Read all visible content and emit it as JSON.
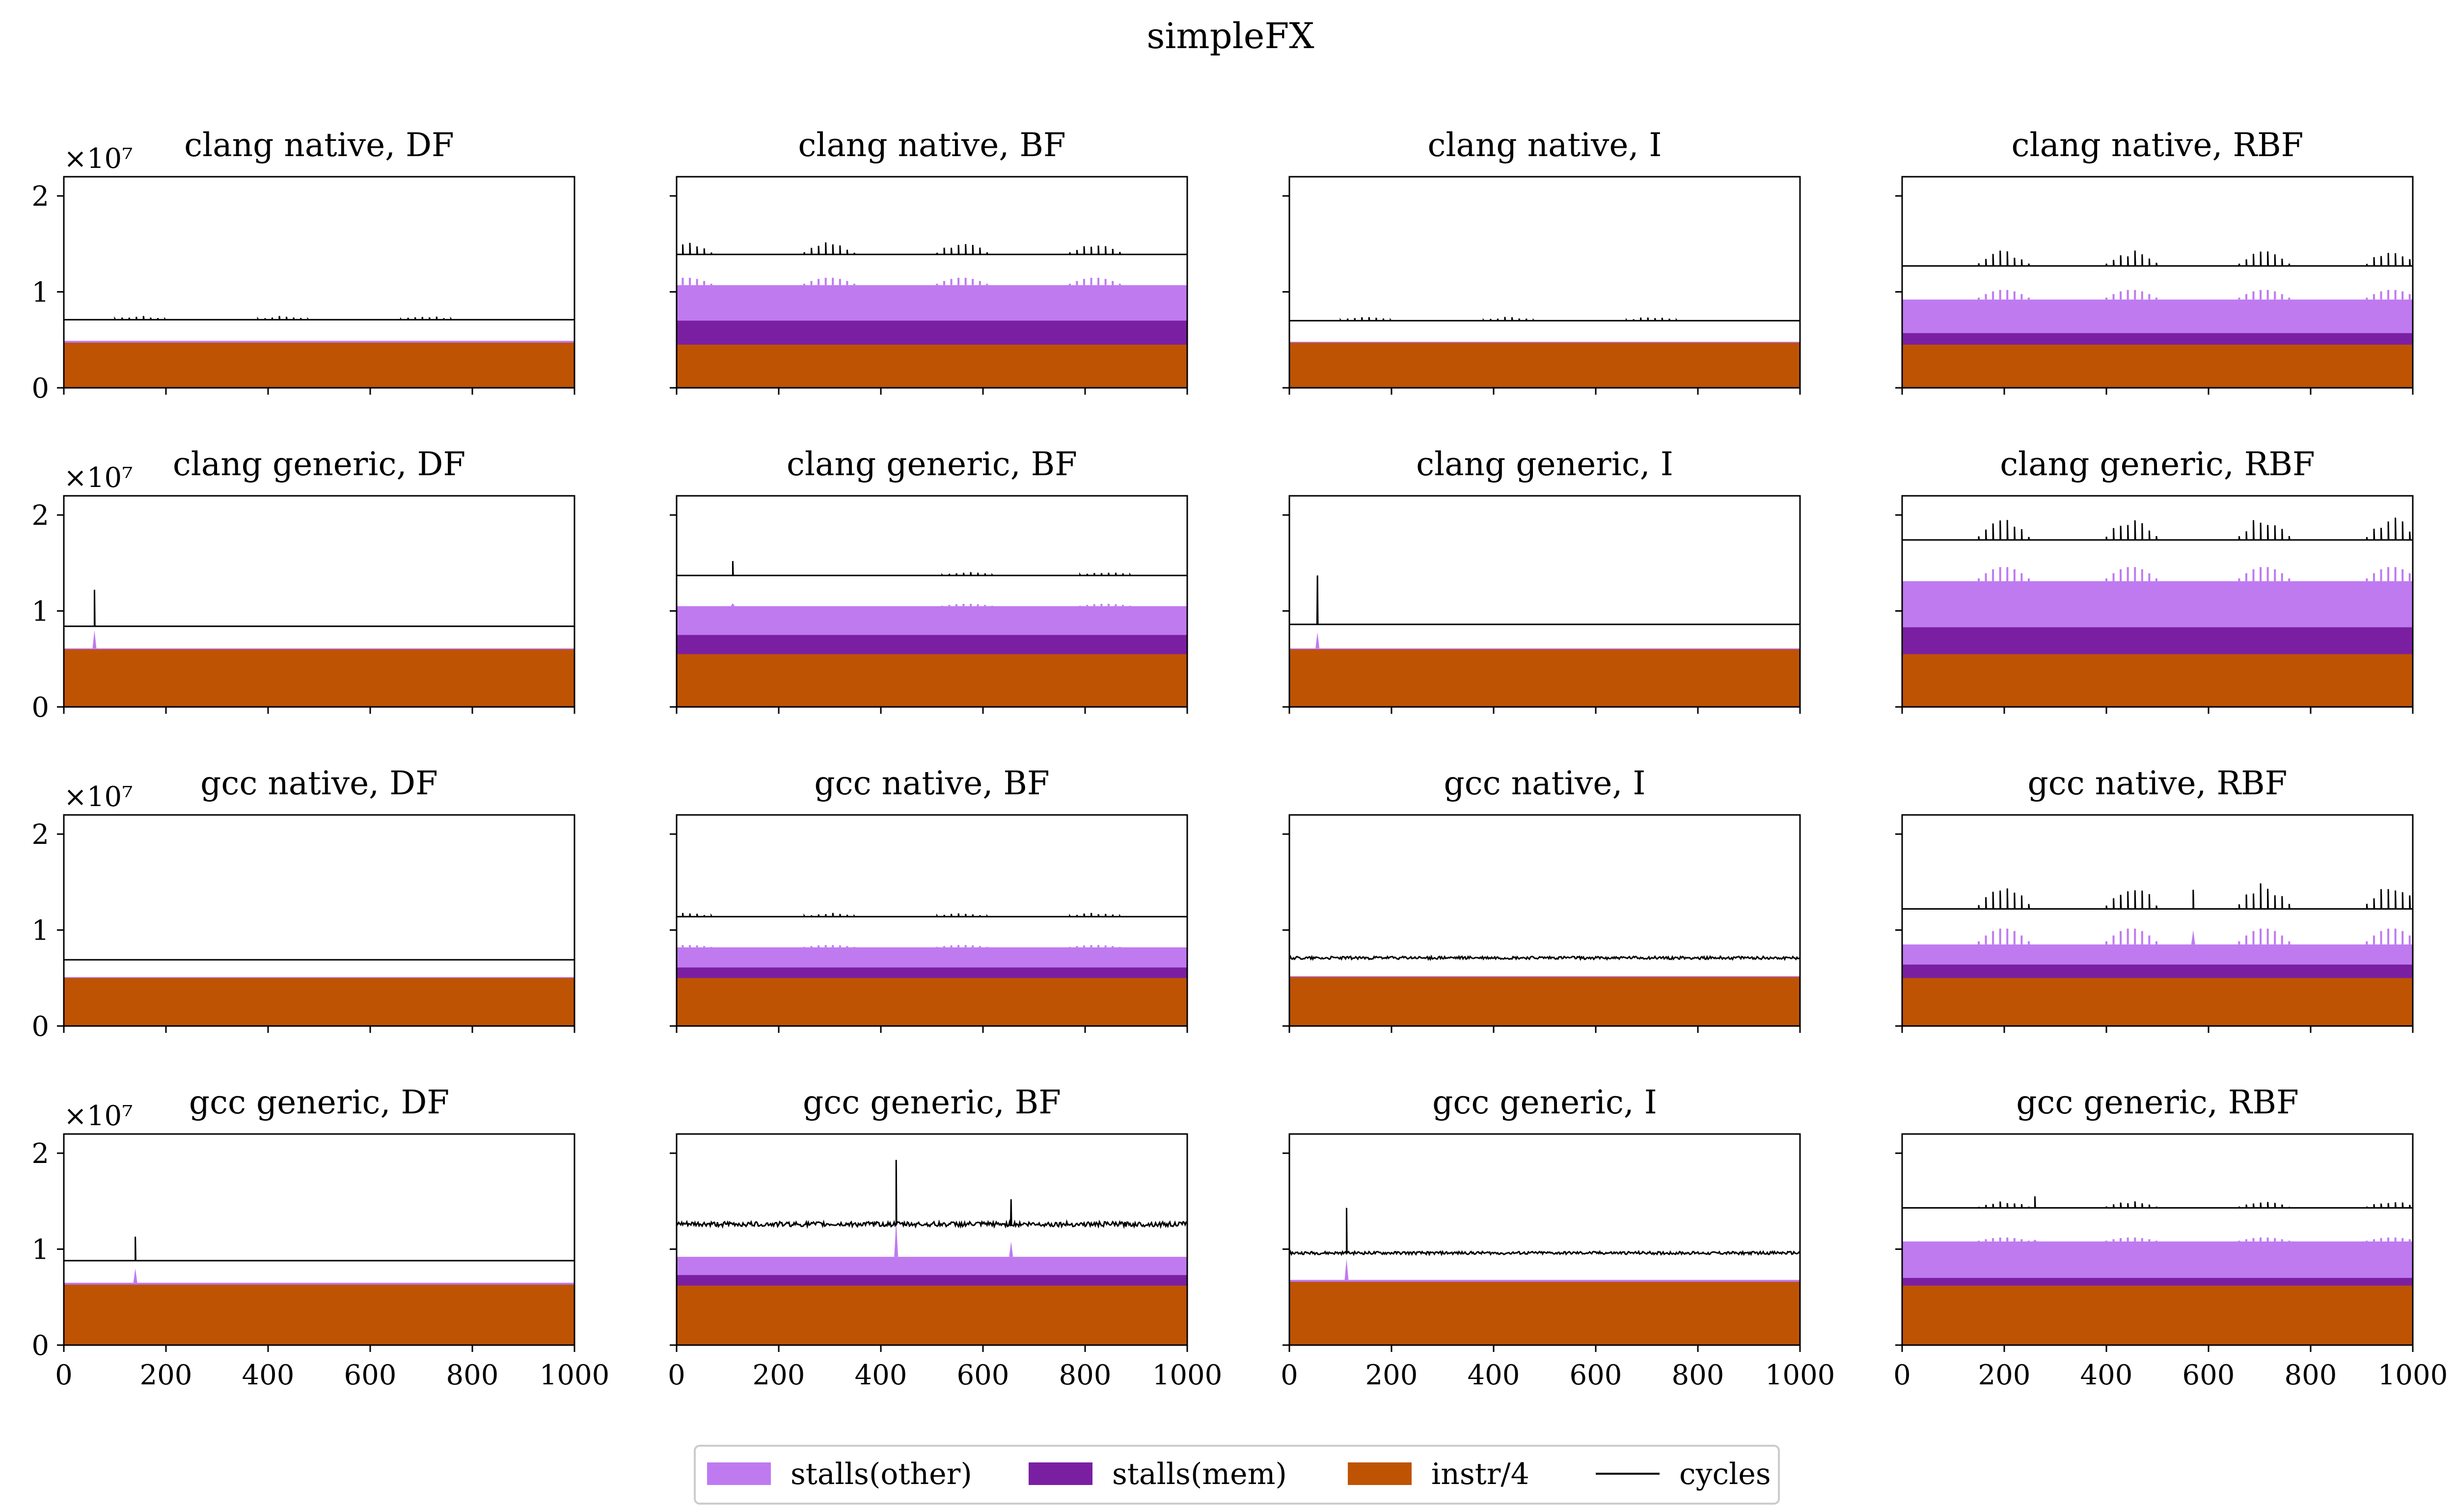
{
  "chart_data": {
    "type": "area",
    "title": "simpleFX",
    "grid": false,
    "legend_placement": "bottom-center",
    "y_scale_label": "×10⁷",
    "x_ticks": [
      0,
      200,
      400,
      600,
      800,
      1000
    ],
    "y_ticks": [
      0,
      1,
      2
    ],
    "xlim": [
      0,
      1000
    ],
    "ylim": [
      0,
      2.2
    ],
    "units_note": "y values in units of 1e7",
    "series": [
      {
        "name": "stalls(other)",
        "color": "#bf7af0",
        "kind": "area"
      },
      {
        "name": "stalls(mem)",
        "color": "#7b1fa2",
        "kind": "area"
      },
      {
        "name": "instr/4",
        "color": "#bf5304",
        "kind": "area"
      },
      {
        "name": "cycles",
        "color": "#000000",
        "kind": "line"
      }
    ],
    "panels": [
      {
        "title": "clang native, DF",
        "instr4": 0.47,
        "stalls_mem_top": 0.47,
        "stalls_other_top": 0.49,
        "cycles": 0.71,
        "bursts": [
          150,
          430,
          710
        ],
        "burst_amp": 0.04,
        "spikes": []
      },
      {
        "title": "clang native, BF",
        "instr4": 0.45,
        "stalls_mem_top": 0.7,
        "stalls_other_top": 1.07,
        "cycles": 1.39,
        "bursts": [
          20,
          300,
          560,
          820
        ],
        "burst_amp": 0.13,
        "spikes": []
      },
      {
        "title": "clang native, I",
        "instr4": 0.47,
        "stalls_mem_top": 0.47,
        "stalls_other_top": 0.48,
        "cycles": 0.7,
        "bursts": [
          150,
          430,
          710
        ],
        "burst_amp": 0.04,
        "spikes": []
      },
      {
        "title": "clang native, RBF",
        "instr4": 0.45,
        "stalls_mem_top": 0.57,
        "stalls_other_top": 0.92,
        "cycles": 1.27,
        "bursts": [
          200,
          450,
          710,
          960
        ],
        "burst_amp": 0.17,
        "spikes": []
      },
      {
        "title": "clang generic, DF",
        "instr4": 0.6,
        "stalls_mem_top": 0.6,
        "stalls_other_top": 0.61,
        "cycles": 0.84,
        "bursts": [],
        "burst_amp": 0,
        "spikes": [
          {
            "x": 60,
            "cycles": 1.22,
            "other": 0.8
          }
        ]
      },
      {
        "title": "clang generic, BF",
        "instr4": 0.55,
        "stalls_mem_top": 0.75,
        "stalls_other_top": 1.05,
        "cycles": 1.37,
        "bursts": [
          570,
          840
        ],
        "burst_amp": 0.04,
        "spikes": [
          {
            "x": 110,
            "cycles": 1.52,
            "other": 1.08
          }
        ]
      },
      {
        "title": "clang generic, I",
        "instr4": 0.6,
        "stalls_mem_top": 0.6,
        "stalls_other_top": 0.61,
        "cycles": 0.86,
        "bursts": [],
        "burst_amp": 0,
        "spikes": [
          {
            "x": 55,
            "cycles": 1.37,
            "other": 0.78
          }
        ]
      },
      {
        "title": "clang generic, RBF",
        "instr4": 0.55,
        "stalls_mem_top": 0.83,
        "stalls_other_top": 1.31,
        "cycles": 1.74,
        "bursts": [
          200,
          450,
          710,
          960
        ],
        "burst_amp": 0.25,
        "spikes": []
      },
      {
        "title": "gcc native, DF",
        "instr4": 0.5,
        "stalls_mem_top": 0.5,
        "stalls_other_top": 0.51,
        "cycles": 0.69,
        "bursts": [],
        "burst_amp": 0,
        "spikes": []
      },
      {
        "title": "gcc native, BF",
        "instr4": 0.5,
        "stalls_mem_top": 0.61,
        "stalls_other_top": 0.82,
        "cycles": 1.14,
        "bursts": [
          20,
          300,
          560,
          820
        ],
        "burst_amp": 0.04,
        "spikes": []
      },
      {
        "title": "gcc native, I",
        "instr4": 0.51,
        "stalls_mem_top": 0.51,
        "stalls_other_top": 0.52,
        "cycles": 0.71,
        "bursts": [],
        "burst_amp": 0,
        "noise": 0.03,
        "spikes": []
      },
      {
        "title": "gcc native, RBF",
        "instr4": 0.5,
        "stalls_mem_top": 0.64,
        "stalls_other_top": 0.85,
        "cycles": 1.22,
        "bursts": [
          200,
          450,
          710,
          960
        ],
        "burst_amp": 0.28,
        "spikes": [
          {
            "x": 570,
            "cycles": 1.42,
            "other": 1.0
          }
        ]
      },
      {
        "title": "gcc generic, DF",
        "instr4": 0.63,
        "stalls_mem_top": 0.63,
        "stalls_other_top": 0.65,
        "cycles": 0.88,
        "bursts": [],
        "burst_amp": 0,
        "spikes": [
          {
            "x": 140,
            "cycles": 1.13,
            "other": 0.8
          }
        ]
      },
      {
        "title": "gcc generic, BF",
        "instr4": 0.62,
        "stalls_mem_top": 0.73,
        "stalls_other_top": 0.92,
        "cycles": 1.26,
        "bursts": [],
        "burst_amp": 0,
        "noise": 0.05,
        "spikes": [
          {
            "x": 430,
            "cycles": 1.93,
            "other": 1.3
          },
          {
            "x": 655,
            "cycles": 1.52,
            "other": 1.08
          }
        ]
      },
      {
        "title": "gcc generic, I",
        "instr4": 0.66,
        "stalls_mem_top": 0.66,
        "stalls_other_top": 0.68,
        "cycles": 0.96,
        "bursts": [],
        "burst_amp": 0,
        "noise": 0.03,
        "spikes": [
          {
            "x": 112,
            "cycles": 1.43,
            "other": 0.9
          }
        ]
      },
      {
        "title": "gcc generic, RBF",
        "instr4": 0.62,
        "stalls_mem_top": 0.7,
        "stalls_other_top": 1.08,
        "cycles": 1.43,
        "bursts": [
          200,
          450,
          710,
          960
        ],
        "burst_amp": 0.07,
        "spikes": [
          {
            "x": 260,
            "cycles": 1.55,
            "other": 1.1
          }
        ]
      }
    ]
  }
}
